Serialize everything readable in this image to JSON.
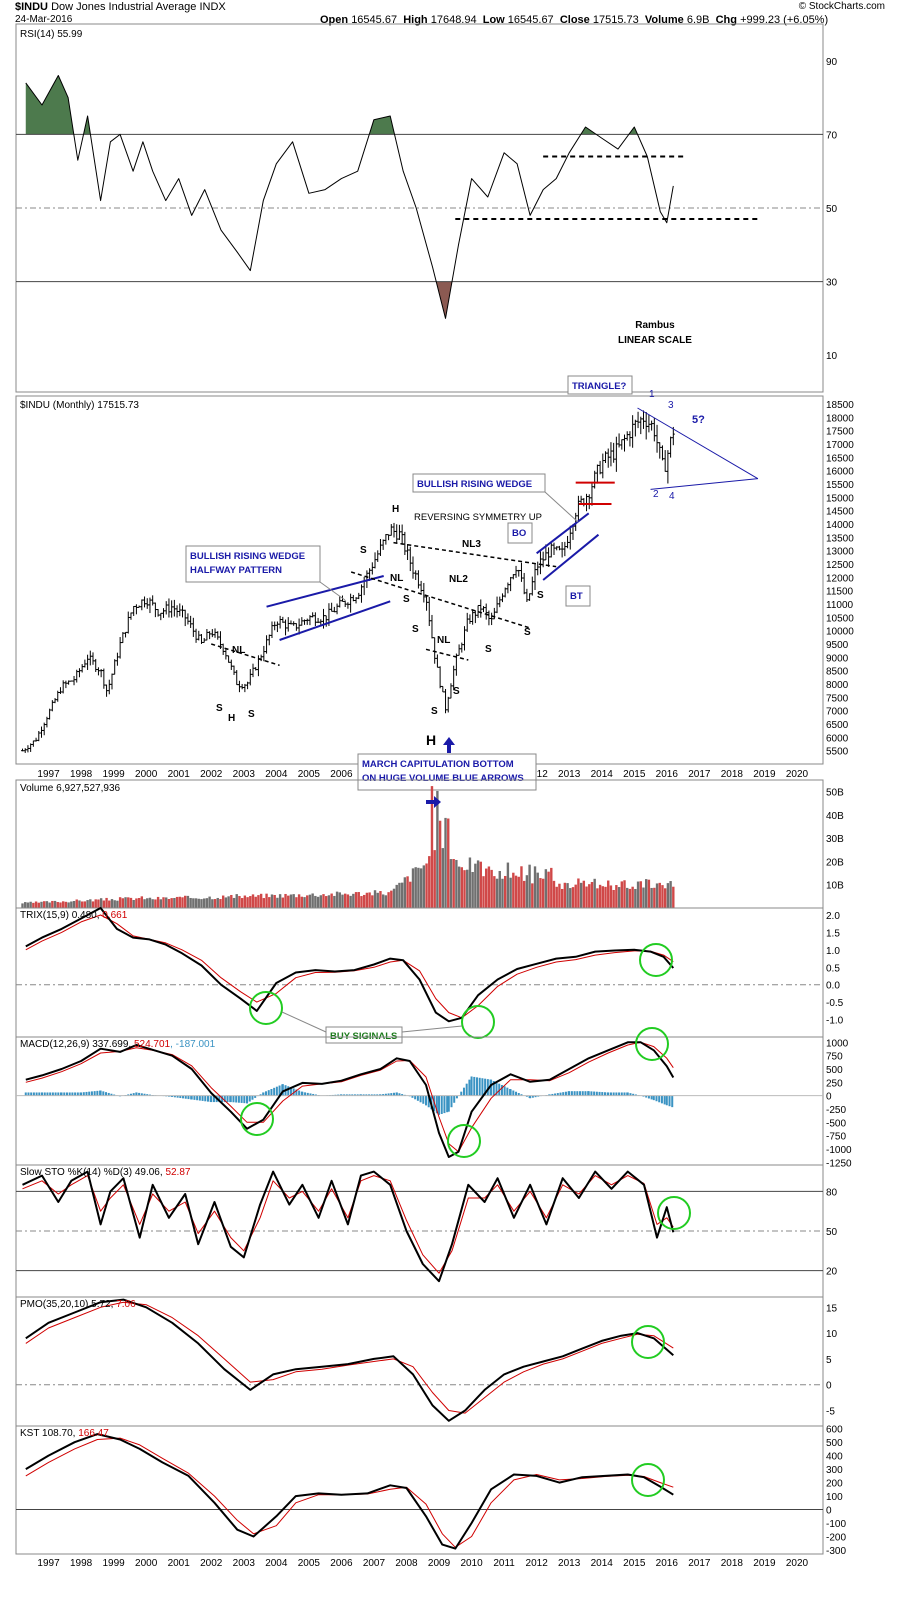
{
  "header": {
    "symbol": "$INDU",
    "name": "Dow Jones Industrial Average INDX",
    "date": "24-Mar-2016",
    "source": "© StockCharts.com",
    "quote": {
      "open_label": "Open",
      "open": "16545.67",
      "high_label": "High",
      "high": "17648.94",
      "low_label": "Low",
      "low": "16545.67",
      "close_label": "Close",
      "close": "17515.73",
      "volume_label": "Volume",
      "volume": "6.9B",
      "chg_label": "Chg",
      "chg": "+999.23 (+6.05%)"
    }
  },
  "colors": {
    "price": "#000000",
    "signal": "#d00000",
    "annotation": "#1a1aa8",
    "circle": "#22cc22",
    "rsi_overbought": "#4d7a4d",
    "rsi_oversold": "#8b5a52",
    "volume_up": "#d04848",
    "volume_down": "#707070",
    "macd_hist": "#3a93c3"
  },
  "chart_data": [
    {
      "type": "line",
      "panel": "rsi",
      "label": "RSI(14) 55.99",
      "ylim": [
        0,
        100
      ],
      "yticks": [
        10,
        30,
        50,
        70,
        90
      ],
      "x": [
        1996.3,
        1996.8,
        1997.3,
        1997.6,
        1997.9,
        1998.2,
        1998.6,
        1998.9,
        1999.2,
        1999.6,
        1999.9,
        2000.2,
        2000.6,
        2001.0,
        2001.4,
        2001.8,
        2002.3,
        2002.8,
        2003.2,
        2003.6,
        2004.0,
        2004.5,
        2005.0,
        2005.5,
        2006.0,
        2006.5,
        2007.0,
        2007.5,
        2007.9,
        2008.3,
        2008.8,
        2009.2,
        2009.6,
        2010.0,
        2010.5,
        2011.0,
        2011.4,
        2011.8,
        2012.2,
        2012.6,
        2013.0,
        2013.5,
        2014.0,
        2014.5,
        2015.0,
        2015.4,
        2015.8,
        2016.0,
        2016.2
      ],
      "values": [
        84,
        78,
        86,
        80,
        63,
        75,
        52,
        68,
        70,
        60,
        68,
        60,
        52,
        58,
        48,
        55,
        44,
        38,
        33,
        52,
        62,
        68,
        54,
        55,
        58,
        60,
        74,
        75,
        60,
        50,
        34,
        20,
        40,
        58,
        53,
        65,
        62,
        48,
        55,
        58,
        65,
        72,
        69,
        66,
        72,
        64,
        49,
        46,
        56
      ],
      "levels": {
        "overbought": 70,
        "oversold": 30,
        "mid": 50
      },
      "dashed_levels": [
        64,
        47
      ]
    },
    {
      "type": "bar",
      "panel": "price",
      "label": "$INDU (Monthly) 17515.73",
      "scale": "linear",
      "ylim": [
        5000,
        18800
      ],
      "yticks": [
        5500,
        6000,
        6500,
        7000,
        7500,
        8000,
        8500,
        9000,
        9500,
        10000,
        10500,
        11000,
        11500,
        12000,
        12500,
        13000,
        13500,
        14000,
        14500,
        15000,
        15500,
        16000,
        16500,
        17000,
        17500,
        18000,
        18500
      ],
      "xticks": [
        "1997",
        "1998",
        "1999",
        "2000",
        "2001",
        "2002",
        "2003",
        "2004",
        "2005",
        "2006",
        "2007",
        "2008",
        "2009",
        "2010",
        "2011",
        "2012",
        "2013",
        "2014",
        "2015",
        "2016",
        "2017",
        "2018",
        "2019",
        "2020"
      ],
      "x": [
        1996.2,
        1996.6,
        1997.0,
        1997.4,
        1997.8,
        1998.2,
        1998.6,
        1998.8,
        1999.2,
        1999.6,
        2000.0,
        2000.4,
        2000.8,
        2001.2,
        2001.7,
        2002.0,
        2002.4,
        2002.8,
        2003.1,
        2003.5,
        2004.0,
        2004.5,
        2005.0,
        2005.5,
        2006.0,
        2006.5,
        2007.0,
        2007.5,
        2007.8,
        2008.2,
        2008.6,
        2008.9,
        2009.2,
        2009.5,
        2009.9,
        2010.3,
        2010.6,
        2011.0,
        2011.4,
        2011.7,
        2012.0,
        2012.4,
        2012.8,
        2013.2,
        2013.6,
        2014.0,
        2014.5,
        2015.0,
        2015.3,
        2015.6,
        2015.9,
        2016.2
      ],
      "values": [
        5500,
        5900,
        6900,
        7900,
        8200,
        9000,
        8500,
        7700,
        9500,
        10900,
        11200,
        10700,
        10900,
        10500,
        9500,
        10000,
        9300,
        8000,
        8000,
        9000,
        10400,
        10100,
        10500,
        10500,
        11000,
        11400,
        12600,
        13800,
        13600,
        12300,
        11300,
        8800,
        7100,
        8800,
        10400,
        10900,
        10300,
        11600,
        12500,
        11000,
        12400,
        13000,
        12900,
        14500,
        15200,
        16300,
        16800,
        17700,
        18000,
        17600,
        16000,
        17500
      ]
    },
    {
      "type": "bar",
      "panel": "volume",
      "label": "Volume 6,927,527,936",
      "ylim": [
        0,
        55
      ],
      "yticks_label": [
        "10B",
        "20B",
        "30B",
        "40B",
        "50B"
      ],
      "yticks": [
        10,
        20,
        30,
        40,
        50
      ]
    },
    {
      "type": "line",
      "panel": "trix",
      "label": "TRIX(15,9)",
      "value": "0.480",
      "signal_value": "0.661",
      "ylim": [
        -1.5,
        2.2
      ],
      "yticks": [
        -1.0,
        -0.5,
        0.0,
        0.5,
        1.0,
        1.5,
        2.0
      ],
      "yticklabels": [
        "-1.0",
        "-0.5",
        "0.0",
        "0.5",
        "1.0",
        "1.5",
        "2.0"
      ],
      "x": [
        1996.3,
        1996.8,
        1997.4,
        1998.0,
        1998.6,
        1999.1,
        1999.6,
        2000.1,
        2000.6,
        2001.1,
        2001.7,
        2002.3,
        2002.9,
        2003.4,
        2004.0,
        2004.6,
        2005.2,
        2005.8,
        2006.4,
        2007.0,
        2007.5,
        2007.9,
        2008.4,
        2008.9,
        2009.3,
        2009.7,
        2010.2,
        2010.8,
        2011.4,
        2012.0,
        2012.6,
        2013.2,
        2013.8,
        2014.4,
        2015.0,
        2015.5,
        2015.9,
        2016.2
      ],
      "values": [
        1.1,
        1.35,
        1.6,
        1.9,
        2.2,
        1.6,
        1.35,
        1.3,
        1.15,
        0.9,
        0.55,
        0.0,
        -0.4,
        -0.75,
        0.05,
        0.35,
        0.42,
        0.38,
        0.42,
        0.58,
        0.75,
        0.7,
        0.15,
        -0.8,
        -1.05,
        -0.95,
        -0.3,
        0.15,
        0.45,
        0.6,
        0.75,
        0.8,
        0.95,
        0.98,
        1.0,
        0.95,
        0.8,
        0.48
      ],
      "signal": [
        1.0,
        1.25,
        1.5,
        1.8,
        2.0,
        1.75,
        1.4,
        1.3,
        1.2,
        1.0,
        0.7,
        0.2,
        -0.2,
        -0.5,
        -0.25,
        0.2,
        0.35,
        0.36,
        0.4,
        0.5,
        0.65,
        0.7,
        0.4,
        -0.4,
        -0.8,
        -0.95,
        -0.6,
        -0.05,
        0.3,
        0.5,
        0.65,
        0.72,
        0.85,
        0.92,
        0.97,
        0.96,
        0.85,
        0.66
      ]
    },
    {
      "type": "line",
      "panel": "macd",
      "label": "MACD(12,26,9)",
      "value": "337.699",
      "signal_value": "524.701",
      "hist_value": "-187.001",
      "ylim": [
        -1300,
        1100
      ],
      "yticks": [
        -1250,
        -1000,
        -750,
        -500,
        -250,
        0,
        250,
        500,
        750,
        1000
      ],
      "x": [
        1996.3,
        1996.8,
        1997.4,
        1998.0,
        1998.6,
        1999.2,
        1999.7,
        2000.2,
        2000.8,
        2001.4,
        2002.0,
        2002.6,
        2003.1,
        2003.6,
        2004.2,
        2004.8,
        2005.4,
        2006.0,
        2006.6,
        2007.2,
        2007.7,
        2008.1,
        2008.6,
        2009.0,
        2009.3,
        2009.6,
        2010.0,
        2010.6,
        2011.2,
        2011.8,
        2012.4,
        2013.0,
        2013.6,
        2014.2,
        2014.8,
        2015.2,
        2015.6,
        2016.0,
        2016.2
      ],
      "values": [
        300,
        380,
        500,
        650,
        880,
        820,
        950,
        860,
        750,
        500,
        50,
        -300,
        -620,
        -450,
        80,
        240,
        220,
        280,
        400,
        500,
        700,
        650,
        200,
        -700,
        -1150,
        -1050,
        -300,
        200,
        400,
        260,
        300,
        500,
        700,
        850,
        1000,
        1000,
        850,
        550,
        340
      ],
      "signal": [
        250,
        330,
        450,
        600,
        800,
        830,
        900,
        850,
        770,
        560,
        150,
        -200,
        -500,
        -500,
        -100,
        180,
        220,
        260,
        380,
        480,
        650,
        660,
        350,
        -400,
        -900,
        -1050,
        -600,
        -50,
        300,
        300,
        280,
        430,
        630,
        800,
        950,
        1000,
        920,
        700,
        525
      ]
    },
    {
      "type": "line",
      "panel": "slowsto",
      "label": "Slow STO %K(14) %D(3)",
      "value": "49.06",
      "signal_value": "52.87",
      "ylim": [
        0,
        100
      ],
      "yticks": [
        20,
        50,
        80
      ],
      "levels": {
        "overbought": 80,
        "mid": 50,
        "oversold": 20
      },
      "x": [
        1996.2,
        1996.8,
        1997.3,
        1997.7,
        1998.2,
        1998.6,
        1998.9,
        1999.3,
        1999.8,
        2000.2,
        2000.7,
        2001.2,
        2001.6,
        2002.1,
        2002.6,
        2003.0,
        2003.5,
        2003.9,
        2004.4,
        2004.8,
        2005.3,
        2005.7,
        2006.2,
        2006.6,
        2007.0,
        2007.5,
        2008.0,
        2008.5,
        2009.0,
        2009.4,
        2009.9,
        2010.4,
        2010.8,
        2011.3,
        2011.8,
        2012.3,
        2012.8,
        2013.3,
        2013.8,
        2014.3,
        2014.8,
        2015.3,
        2015.7,
        2016.0,
        2016.2
      ],
      "values": [
        85,
        92,
        72,
        88,
        95,
        55,
        80,
        90,
        45,
        85,
        60,
        78,
        40,
        72,
        38,
        30,
        70,
        95,
        70,
        85,
        60,
        88,
        55,
        92,
        95,
        85,
        50,
        25,
        12,
        40,
        85,
        72,
        90,
        60,
        85,
        55,
        90,
        75,
        95,
        82,
        95,
        85,
        45,
        68,
        49
      ],
      "signal": [
        82,
        88,
        78,
        85,
        92,
        65,
        75,
        85,
        55,
        78,
        65,
        72,
        48,
        65,
        45,
        35,
        60,
        88,
        75,
        80,
        65,
        82,
        60,
        88,
        92,
        88,
        58,
        32,
        18,
        35,
        75,
        75,
        85,
        65,
        80,
        60,
        85,
        78,
        92,
        85,
        92,
        86,
        55,
        60,
        53
      ]
    },
    {
      "type": "line",
      "panel": "pmo",
      "label": "PMO(35,20,10)",
      "value": "5.72",
      "signal_value": "7.06",
      "ylim": [
        -8,
        17
      ],
      "yticks": [
        -5,
        0,
        5,
        10,
        15
      ],
      "x": [
        1996.3,
        1997.0,
        1997.8,
        1998.6,
        1999.3,
        2000.0,
        2000.8,
        2001.6,
        2002.4,
        2003.2,
        2003.9,
        2004.6,
        2005.4,
        2006.2,
        2007.0,
        2007.6,
        2008.2,
        2008.8,
        2009.3,
        2009.8,
        2010.4,
        2011.0,
        2011.6,
        2012.2,
        2012.8,
        2013.4,
        2014.0,
        2014.6,
        2015.1,
        2015.6,
        2016.2
      ],
      "values": [
        9,
        12,
        14,
        16,
        16.5,
        15,
        12,
        8,
        3,
        -1,
        2,
        3,
        3.5,
        4,
        5,
        5.5,
        2,
        -4,
        -7,
        -5,
        -1,
        2,
        3.5,
        4.5,
        5.5,
        7,
        8.5,
        9.5,
        10,
        9,
        5.7
      ],
      "signal": [
        8,
        11,
        13,
        15,
        16,
        15.5,
        13,
        9.5,
        5,
        0.5,
        1,
        2.5,
        3,
        3.8,
        4.5,
        5,
        3.5,
        -1.5,
        -5,
        -5.5,
        -2.5,
        0.5,
        2.5,
        4,
        5,
        6.5,
        8,
        9,
        9.8,
        9.5,
        7.1
      ]
    },
    {
      "type": "line",
      "panel": "kst",
      "label": "KST",
      "value": "108.70",
      "signal_value": "166.47",
      "ylim": [
        -330,
        620
      ],
      "yticks": [
        -300,
        -200,
        -100,
        0,
        100,
        200,
        300,
        400,
        500,
        600
      ],
      "x": [
        1996.3,
        1997.0,
        1997.8,
        1998.5,
        1999.2,
        1999.8,
        2000.5,
        2001.3,
        2002.1,
        2002.8,
        2003.3,
        2004.0,
        2004.6,
        2005.3,
        2006.0,
        2006.8,
        2007.5,
        2008.0,
        2008.6,
        2009.1,
        2009.5,
        2010.0,
        2010.6,
        2011.3,
        2012.0,
        2012.7,
        2013.4,
        2014.1,
        2014.8,
        2015.3,
        2015.8,
        2016.2
      ],
      "values": [
        300,
        400,
        500,
        560,
        520,
        450,
        350,
        250,
        50,
        -150,
        -200,
        -50,
        100,
        120,
        110,
        120,
        180,
        160,
        -50,
        -260,
        -290,
        -100,
        150,
        260,
        250,
        200,
        240,
        250,
        260,
        240,
        170,
        110
      ],
      "signal": [
        250,
        350,
        450,
        520,
        530,
        480,
        380,
        270,
        100,
        -80,
        -180,
        -120,
        50,
        110,
        110,
        115,
        150,
        165,
        40,
        -180,
        -280,
        -200,
        50,
        220,
        260,
        220,
        230,
        245,
        255,
        245,
        200,
        166
      ]
    }
  ],
  "annotations": {
    "rambus": "Rambus",
    "linear_scale": "LINEAR SCALE",
    "triangle": "TRIANGLE?",
    "bullish_wedge_1": "BULLISH RISING WEDGE",
    "halfway": "HALFWAY PATTERN",
    "bullish_wedge_2": "BULLISH RISING WEDGE",
    "reversing_symmetry": "REVERSING SYMMETRY UP",
    "bo": "BO",
    "bt": "BT",
    "march_bottom_1": "MARCH CAPITULATION BOTTOM",
    "march_bottom_2": "ON HUGE VOLUME BLUE ARROWS",
    "buy_signals": "BUY SIGINALS",
    "nl": "NL",
    "nl2": "NL2",
    "nl3": "NL3",
    "s": "S",
    "h": "H",
    "wave_1": "1",
    "wave_2": "2",
    "wave_3": "3",
    "wave_4": "4",
    "wave_5": "5?"
  }
}
